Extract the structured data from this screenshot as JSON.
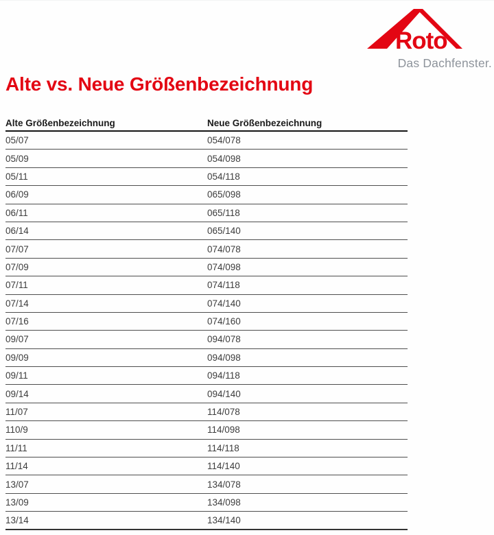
{
  "logo": {
    "brand": "Roto",
    "tagline": "Das Dachfenster.",
    "brand_color": "#e30613",
    "tagline_color": "#8d939b"
  },
  "title": {
    "text": "Alte vs. Neue Größenbezeichnung",
    "color": "#e30613"
  },
  "table": {
    "headers": [
      "Alte Größenbezeichnung",
      "Neue Größenbezeichnung"
    ],
    "rows": [
      [
        "05/07",
        "054/078"
      ],
      [
        "05/09",
        "054/098"
      ],
      [
        "05/11",
        "054/118"
      ],
      [
        "06/09",
        "065/098"
      ],
      [
        "06/11",
        "065/118"
      ],
      [
        "06/14",
        "065/140"
      ],
      [
        "07/07",
        "074/078"
      ],
      [
        "07/09",
        "074/098"
      ],
      [
        "07/11",
        "074/118"
      ],
      [
        "07/14",
        "074/140"
      ],
      [
        "07/16",
        "074/160"
      ],
      [
        "09/07",
        "094/078"
      ],
      [
        "09/09",
        "094/098"
      ],
      [
        "09/11",
        "094/118"
      ],
      [
        "09/14",
        "094/140"
      ],
      [
        "11/07",
        "114/078"
      ],
      [
        "110/9",
        "114/098"
      ],
      [
        "11/11",
        "114/118"
      ],
      [
        "11/14",
        "114/140"
      ],
      [
        "13/07",
        "134/078"
      ],
      [
        "13/09",
        "134/098"
      ],
      [
        "13/14",
        "134/140"
      ]
    ]
  }
}
